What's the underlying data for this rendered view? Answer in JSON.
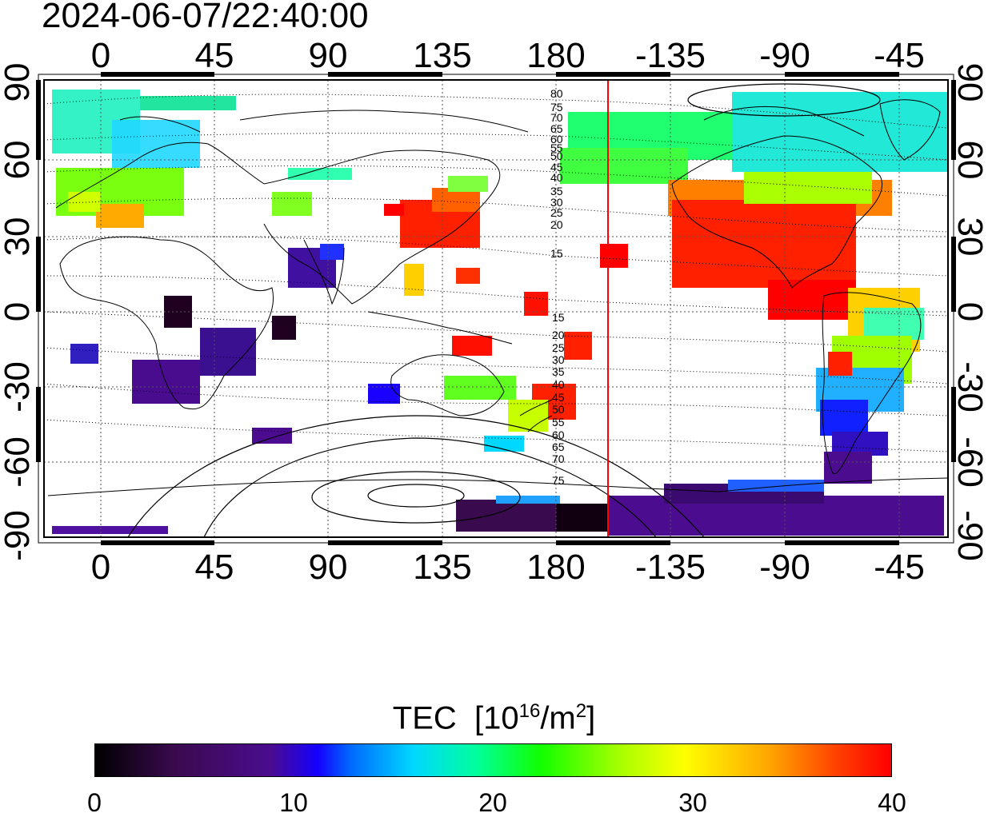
{
  "timestamp": "2024-06-07/22:40:00",
  "map": {
    "lon_ticks": [
      "0",
      "45",
      "90",
      "135",
      "180",
      "-135",
      "-90",
      "-45"
    ],
    "lat_ticks": [
      "90",
      "60",
      "30",
      "0",
      "-30",
      "-60",
      "-90"
    ],
    "contour_labels_north": [
      "80",
      "75",
      "70",
      "65",
      "60",
      "55",
      "50",
      "45",
      "40",
      "35",
      "30",
      "25",
      "20",
      "15"
    ],
    "contour_labels_south": [
      "15",
      "20",
      "25",
      "30",
      "35",
      "40",
      "45",
      "50",
      "55",
      "60",
      "65",
      "70",
      "75"
    ],
    "terminator_color": "#ff0000"
  },
  "colorbar": {
    "title": "TEC",
    "unit_base": "[10",
    "unit_exp1": "16",
    "unit_mid": "/m",
    "unit_exp2": "2",
    "unit_end": "]",
    "min": 0,
    "max": 40,
    "ticks": [
      "0",
      "10",
      "20",
      "30",
      "40"
    ]
  }
}
